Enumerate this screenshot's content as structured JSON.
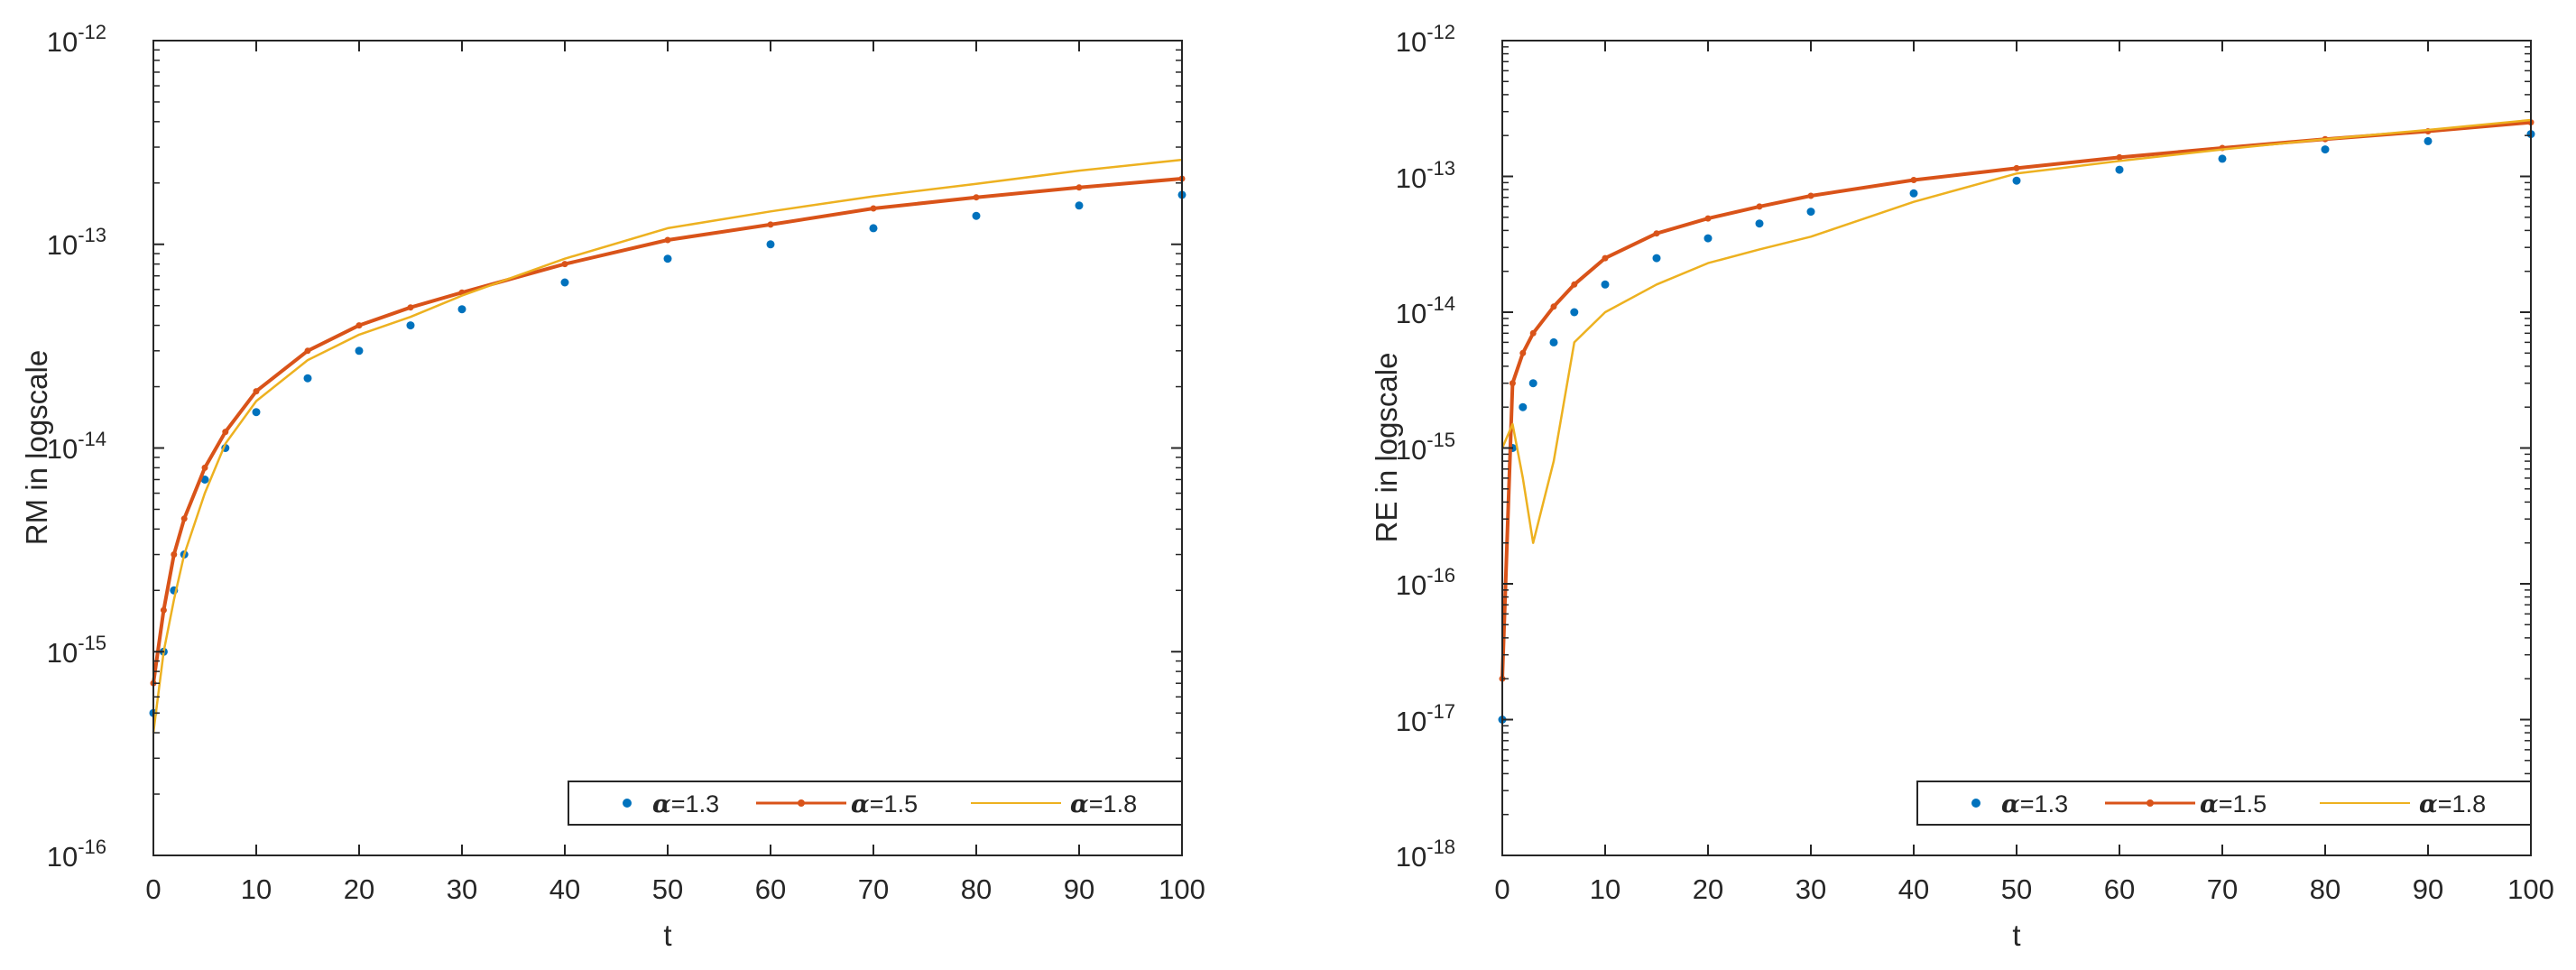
{
  "colors": {
    "blue": "#0072BD",
    "red": "#D95319",
    "yellow": "#EDB120",
    "axis": "#262626"
  },
  "chart_data": [
    {
      "type": "line",
      "title": "",
      "xlabel": "t",
      "ylabel": "RM in logscale",
      "xlim": [
        0,
        100
      ],
      "ylim": [
        1e-16,
        1e-12
      ],
      "yscale": "log",
      "xticks": [
        "0",
        "10",
        "20",
        "30",
        "40",
        "50",
        "60",
        "70",
        "80",
        "90",
        "100"
      ],
      "yticks": [
        {
          "base": "10",
          "exp": "-16"
        },
        {
          "base": "10",
          "exp": "-15"
        },
        {
          "base": "10",
          "exp": "-14"
        },
        {
          "base": "10",
          "exp": "-13"
        },
        {
          "base": "10",
          "exp": "-12"
        }
      ],
      "legend": {
        "position": "bottom-right",
        "entries": [
          {
            "alpha": "α",
            "text": "=1.3"
          },
          {
            "alpha": "α",
            "text": "=1.5"
          },
          {
            "alpha": "α",
            "text": "=1.8"
          }
        ]
      },
      "series": [
        {
          "name": "α=1.3",
          "color": "blue",
          "marker": "dot",
          "x": [
            0,
            1,
            2,
            3,
            5,
            7,
            10,
            15,
            20,
            25,
            30,
            40,
            50,
            60,
            70,
            80,
            90,
            100
          ],
          "y": [
            5e-16,
            1e-15,
            2e-15,
            3e-15,
            7e-15,
            1e-14,
            1.5e-14,
            2.2e-14,
            3e-14,
            4e-14,
            4.8e-14,
            6.5e-14,
            8.5e-14,
            1e-13,
            1.2e-13,
            1.38e-13,
            1.55e-13,
            1.75e-13
          ]
        },
        {
          "name": "α=1.5",
          "color": "red",
          "marker": "line-dot",
          "x": [
            0,
            1,
            2,
            3,
            5,
            7,
            10,
            15,
            20,
            25,
            30,
            40,
            50,
            60,
            70,
            80,
            90,
            100
          ],
          "y": [
            7e-16,
            1.6e-15,
            3e-15,
            4.5e-15,
            8e-15,
            1.2e-14,
            1.9e-14,
            3e-14,
            4e-14,
            4.9e-14,
            5.8e-14,
            8e-14,
            1.05e-13,
            1.25e-13,
            1.5e-13,
            1.7e-13,
            1.9e-13,
            2.1e-13
          ]
        },
        {
          "name": "α=1.8",
          "color": "yellow",
          "marker": "line",
          "x": [
            0,
            1,
            2,
            3,
            5,
            7,
            10,
            15,
            20,
            25,
            30,
            40,
            50,
            60,
            70,
            80,
            90,
            100
          ],
          "y": [
            4e-16,
            1e-15,
            1.8e-15,
            3e-15,
            6e-15,
            1.05e-14,
            1.7e-14,
            2.7e-14,
            3.6e-14,
            4.4e-14,
            5.6e-14,
            8.5e-14,
            1.2e-13,
            1.45e-13,
            1.72e-13,
            1.98e-13,
            2.3e-13,
            2.6e-13
          ]
        }
      ]
    },
    {
      "type": "line",
      "title": "",
      "xlabel": "t",
      "ylabel": "RE in logscale",
      "xlim": [
        0,
        100
      ],
      "ylim": [
        1e-18,
        1e-12
      ],
      "yscale": "log",
      "xticks": [
        "0",
        "10",
        "20",
        "30",
        "40",
        "50",
        "60",
        "70",
        "80",
        "90",
        "100"
      ],
      "yticks": [
        {
          "base": "10",
          "exp": "-18"
        },
        {
          "base": "10",
          "exp": "-17"
        },
        {
          "base": "10",
          "exp": "-16"
        },
        {
          "base": "10",
          "exp": "-15"
        },
        {
          "base": "10",
          "exp": "-14"
        },
        {
          "base": "10",
          "exp": "-13"
        },
        {
          "base": "10",
          "exp": "-12"
        }
      ],
      "legend": {
        "position": "bottom-right",
        "entries": [
          {
            "alpha": "α",
            "text": "=1.3"
          },
          {
            "alpha": "α",
            "text": "=1.5"
          },
          {
            "alpha": "α",
            "text": "=1.8"
          }
        ]
      },
      "series": [
        {
          "name": "α=1.3",
          "color": "blue",
          "marker": "dot",
          "x": [
            0,
            1,
            2,
            3,
            5,
            7,
            10,
            15,
            20,
            25,
            30,
            40,
            50,
            60,
            70,
            80,
            90,
            100
          ],
          "y": [
            1e-17,
            1e-15,
            2e-15,
            3e-15,
            6e-15,
            1e-14,
            1.6e-14,
            2.5e-14,
            3.5e-14,
            4.5e-14,
            5.5e-14,
            7.5e-14,
            9.3e-14,
            1.12e-13,
            1.35e-13,
            1.58e-13,
            1.82e-13,
            2.05e-13
          ]
        },
        {
          "name": "α=1.5",
          "color": "red",
          "marker": "line-dot",
          "x": [
            0,
            1,
            2,
            3,
            5,
            7,
            10,
            15,
            20,
            25,
            30,
            40,
            50,
            60,
            70,
            80,
            90,
            100
          ],
          "y": [
            2e-17,
            3e-15,
            5e-15,
            7e-15,
            1.1e-14,
            1.6e-14,
            2.5e-14,
            3.8e-14,
            4.9e-14,
            6e-14,
            7.2e-14,
            9.4e-14,
            1.15e-13,
            1.38e-13,
            1.62e-13,
            1.88e-13,
            2.15e-13,
            2.5e-13
          ]
        },
        {
          "name": "α=1.8",
          "color": "yellow",
          "marker": "line",
          "x": [
            0,
            1,
            2,
            3,
            5,
            7,
            10,
            15,
            20,
            25,
            30,
            40,
            50,
            60,
            70,
            80,
            90,
            100
          ],
          "y": [
            1e-15,
            1.5e-15,
            6e-16,
            2e-16,
            8e-16,
            6e-15,
            1e-14,
            1.6e-14,
            2.3e-14,
            2.9e-14,
            3.6e-14,
            6.5e-14,
            1.05e-13,
            1.3e-13,
            1.58e-13,
            1.88e-13,
            2.2e-13,
            2.6e-13
          ]
        }
      ]
    }
  ]
}
